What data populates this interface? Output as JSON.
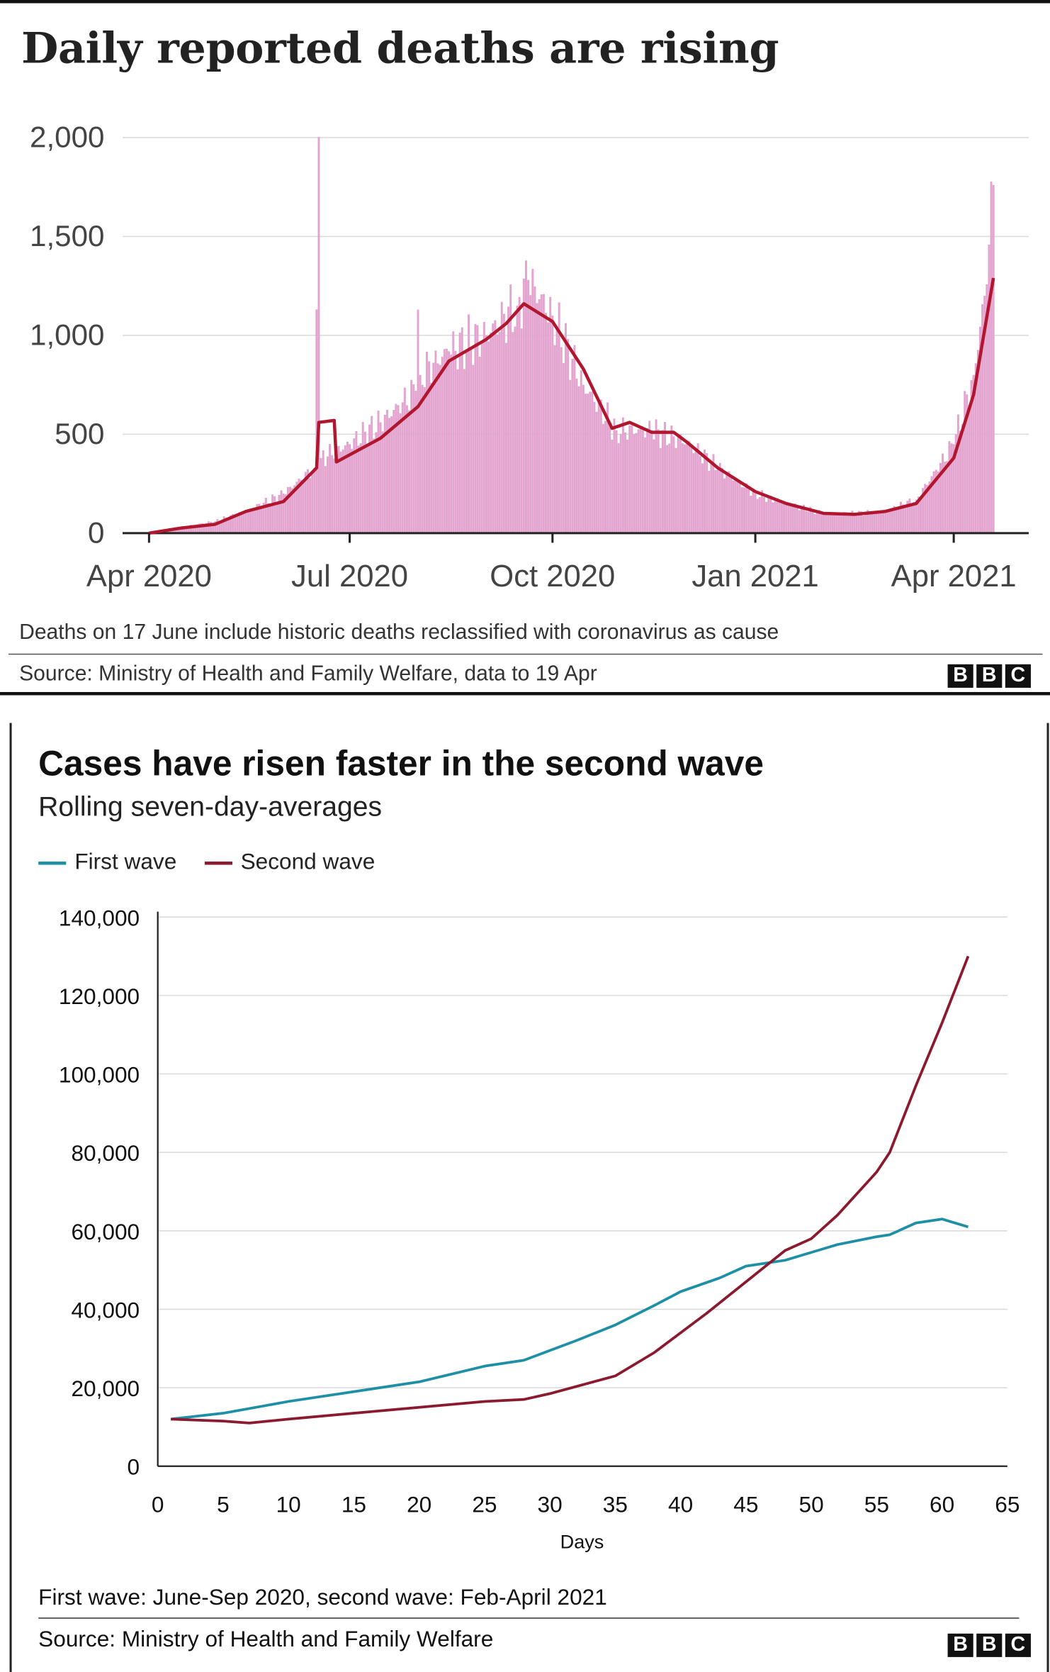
{
  "colors": {
    "deaths_bar": "#e3a4cf",
    "deaths_line": "#b0162e",
    "first_wave": "#1f8fa6",
    "second_wave": "#8b1a2e",
    "grid": "#d9d9d9",
    "text": "#222222"
  },
  "panel1": {
    "title": "Daily reported deaths are rising",
    "note": "Deaths on 17 June include historic deaths reclassified with coronavirus as cause",
    "source": "Source: Ministry of Health and Family Welfare, data to 19 Apr",
    "logo": [
      "B",
      "B",
      "C"
    ]
  },
  "panel2": {
    "title": "Cases have risen faster in the second wave",
    "subtitle": "Rolling seven-day-averages",
    "note": "First wave: June-Sep 2020, second wave: Feb-April 2021",
    "source": "Source: Ministry of Health and Family Welfare",
    "logo": [
      "B",
      "B",
      "C"
    ]
  },
  "chart_data": [
    {
      "type": "bar",
      "title": "Daily reported deaths are rising",
      "x_axis": {
        "type": "date",
        "range": [
          "2020-03-20",
          "2021-05-05"
        ],
        "ticks": [
          {
            "date": "2020-04-01",
            "label": "Apr 2020"
          },
          {
            "date": "2020-07-01",
            "label": "Jul 2020"
          },
          {
            "date": "2020-10-01",
            "label": "Oct 2020"
          },
          {
            "date": "2021-01-01",
            "label": "Jan 2021"
          },
          {
            "date": "2021-04-01",
            "label": "Apr 2021"
          }
        ]
      },
      "y_axis": {
        "range": [
          0,
          2000
        ],
        "ticks": [
          {
            "value": 0,
            "label": "0"
          },
          {
            "value": 500,
            "label": "500"
          },
          {
            "value": 1000,
            "label": "1,000"
          },
          {
            "value": 1500,
            "label": "1,500"
          },
          {
            "value": 2000,
            "label": "2,000"
          }
        ]
      },
      "grid": true,
      "bar_range": [
        "2020-04-01",
        "2021-04-19"
      ],
      "bar_series_keypoints": [
        [
          "2020-04-01",
          5
        ],
        [
          "2020-04-15",
          30
        ],
        [
          "2020-05-01",
          60
        ],
        [
          "2020-05-15",
          110
        ],
        [
          "2020-06-01",
          200
        ],
        [
          "2020-06-15",
          330
        ],
        [
          "2020-06-17",
          2003
        ],
        [
          "2020-06-18",
          380
        ],
        [
          "2020-07-01",
          450
        ],
        [
          "2020-07-15",
          560
        ],
        [
          "2020-07-31",
          720
        ],
        [
          "2020-08-01",
          1130
        ],
        [
          "2020-08-02",
          800
        ],
        [
          "2020-08-15",
          920
        ],
        [
          "2020-09-01",
          1000
        ],
        [
          "2020-09-15",
          1150
        ],
        [
          "2020-09-20",
          1280
        ],
        [
          "2020-10-01",
          1100
        ],
        [
          "2020-10-15",
          750
        ],
        [
          "2020-10-30",
          520
        ],
        [
          "2020-11-15",
          520
        ],
        [
          "2020-12-01",
          460
        ],
        [
          "2020-12-15",
          330
        ],
        [
          "2021-01-01",
          200
        ],
        [
          "2021-01-15",
          150
        ],
        [
          "2021-02-01",
          100
        ],
        [
          "2021-02-15",
          100
        ],
        [
          "2021-03-01",
          110
        ],
        [
          "2021-03-15",
          170
        ],
        [
          "2021-04-01",
          450
        ],
        [
          "2021-04-10",
          800
        ],
        [
          "2021-04-15",
          1200
        ],
        [
          "2021-04-19",
          1760
        ]
      ],
      "line_series": {
        "name": "7-day average",
        "points": [
          [
            "2020-04-01",
            0
          ],
          [
            "2020-04-15",
            25
          ],
          [
            "2020-05-01",
            45
          ],
          [
            "2020-05-15",
            110
          ],
          [
            "2020-06-01",
            160
          ],
          [
            "2020-06-16",
            330
          ],
          [
            "2020-06-17",
            560
          ],
          [
            "2020-06-24",
            570
          ],
          [
            "2020-06-25",
            360
          ],
          [
            "2020-07-15",
            480
          ],
          [
            "2020-08-01",
            640
          ],
          [
            "2020-08-15",
            870
          ],
          [
            "2020-09-01",
            980
          ],
          [
            "2020-09-10",
            1060
          ],
          [
            "2020-09-18",
            1160
          ],
          [
            "2020-10-01",
            1070
          ],
          [
            "2020-10-15",
            830
          ],
          [
            "2020-10-28",
            530
          ],
          [
            "2020-11-05",
            560
          ],
          [
            "2020-11-15",
            510
          ],
          [
            "2020-11-25",
            510
          ],
          [
            "2020-12-01",
            460
          ],
          [
            "2020-12-15",
            330
          ],
          [
            "2021-01-01",
            210
          ],
          [
            "2021-01-15",
            150
          ],
          [
            "2021-02-01",
            100
          ],
          [
            "2021-02-15",
            95
          ],
          [
            "2021-03-01",
            110
          ],
          [
            "2021-03-15",
            150
          ],
          [
            "2021-04-01",
            380
          ],
          [
            "2021-04-10",
            700
          ],
          [
            "2021-04-19",
            1290
          ]
        ]
      }
    },
    {
      "type": "line",
      "title": "Cases have risen faster in the second wave",
      "subtitle": "Rolling seven-day-averages",
      "xlabel": "Days",
      "ylabel": "",
      "xlim": [
        0,
        65
      ],
      "ylim": [
        0,
        140000
      ],
      "x_ticks": [
        0,
        5,
        10,
        15,
        20,
        25,
        30,
        35,
        40,
        45,
        50,
        55,
        60,
        65
      ],
      "x_tick_labels": [
        "0",
        "5",
        "10",
        "15",
        "20",
        "25",
        "30",
        "35",
        "40",
        "45",
        "50",
        "55",
        "60",
        "65"
      ],
      "y_ticks": [
        0,
        20000,
        40000,
        60000,
        80000,
        100000,
        120000,
        140000
      ],
      "y_tick_labels": [
        "0",
        "20,000",
        "40,000",
        "60,000",
        "80,000",
        "100,000",
        "120,000",
        "140,000"
      ],
      "grid": true,
      "legend": "top-left",
      "series": [
        {
          "name": "First wave",
          "x": [
            1,
            5,
            10,
            15,
            20,
            25,
            28,
            32,
            35,
            38,
            40,
            43,
            45,
            48,
            50,
            52,
            55,
            56,
            58,
            60,
            62
          ],
          "y": [
            12000,
            13500,
            16500,
            19000,
            21500,
            25500,
            27000,
            32000,
            36000,
            41000,
            44500,
            48000,
            51000,
            52500,
            54500,
            56500,
            58500,
            59000,
            62000,
            63000,
            61000
          ]
        },
        {
          "name": "Second wave",
          "x": [
            1,
            5,
            7,
            10,
            15,
            20,
            25,
            28,
            30,
            35,
            38,
            40,
            42,
            45,
            48,
            50,
            52,
            55,
            56,
            58,
            60,
            62
          ],
          "y": [
            12000,
            11500,
            11000,
            12000,
            13500,
            15000,
            16500,
            17000,
            18500,
            23000,
            29000,
            34000,
            39000,
            47000,
            55000,
            58000,
            64000,
            75000,
            80000,
            97000,
            113000,
            130000
          ]
        }
      ]
    }
  ]
}
